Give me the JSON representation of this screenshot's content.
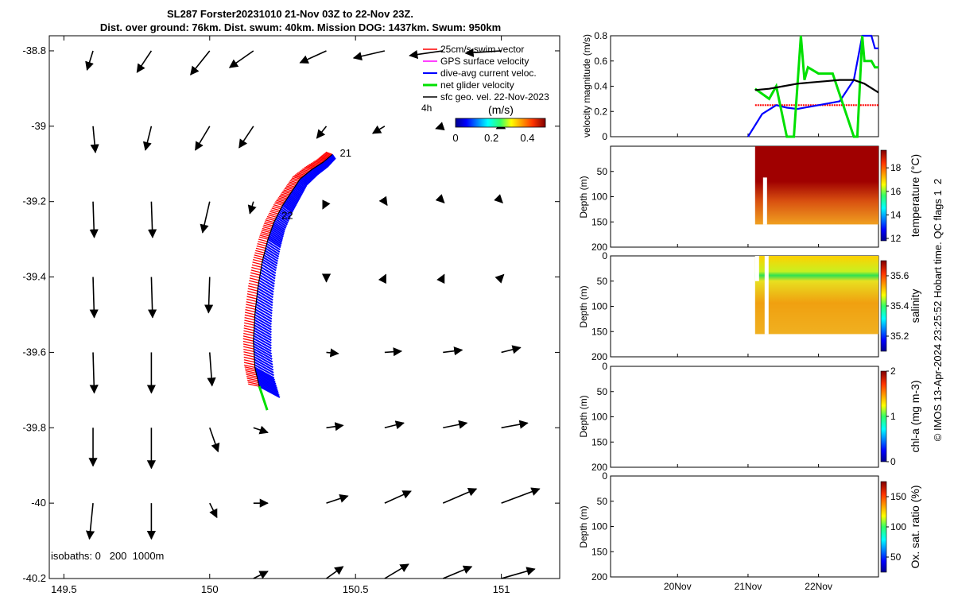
{
  "title": {
    "line1": "SL287 Forster20231010 21-Nov 03Z to 22-Nov 23Z.",
    "line2": "Dist. over ground: 76km. Dist. swum: 40km. Mission DOG: 1437km. Swum: 950km"
  },
  "copyright": "© IMOS 13-Apr-2024 23:25:52 Hobart time. QC flags 1  2",
  "colors": {
    "swim_vector": "#ff0000",
    "gps_velocity": "#ff00ff",
    "dive_avg_current": "#0000ff",
    "net_glider": "#00e000",
    "sfc_geo_vel": "#000000"
  },
  "chart_data": [
    {
      "type": "scatter",
      "panel": "map",
      "xticks": [
        "149.5",
        "150",
        "150.5",
        "151"
      ],
      "xtick_values": [
        149.5,
        150,
        150.5,
        151
      ],
      "yticks": [
        "-38.8",
        "-39",
        "-39.2",
        "-39.4",
        "-39.6",
        "-39.8",
        "-40",
        "-40.2"
      ],
      "ytick_values": [
        -38.8,
        -39,
        -39.2,
        -39.4,
        -39.6,
        -39.8,
        -40,
        -40.2
      ],
      "xlim": [
        149.45,
        151.2
      ],
      "ylim": [
        -40.2,
        -38.76
      ],
      "legend": {
        "placement": "top-right",
        "entries": [
          "25cm/s swim vector",
          "GPS surface velocity",
          "dive-avg current veloc.",
          "net glider velocity",
          "sfc geo. vel. 22-Nov-2023"
        ],
        "interval_label": "4h"
      },
      "colorbar": {
        "label": "(m/s)",
        "ticks": [
          "0",
          "0.2",
          "0.4"
        ],
        "tick_values": [
          0,
          0.2,
          0.4
        ],
        "range": [
          0,
          0.5
        ]
      },
      "isobaths_label": "isobaths: 0   200  1000m",
      "annotations": [
        {
          "text": "21",
          "lon": 150.43,
          "lat": -39.07
        },
        {
          "text": "22",
          "lon": 150.23,
          "lat": -39.235
        }
      ],
      "track": [
        [
          150.42,
          -39.075
        ],
        [
          150.39,
          -39.095
        ],
        [
          150.35,
          -39.115
        ],
        [
          150.31,
          -39.14
        ],
        [
          150.28,
          -39.175
        ],
        [
          150.25,
          -39.21
        ],
        [
          150.22,
          -39.255
        ],
        [
          150.2,
          -39.3
        ],
        [
          150.18,
          -39.36
        ],
        [
          150.165,
          -39.43
        ],
        [
          150.155,
          -39.5
        ],
        [
          150.15,
          -39.57
        ],
        [
          150.155,
          -39.64
        ],
        [
          150.17,
          -39.69
        ]
      ],
      "geo_vectors": {
        "columns": [
          149.6,
          149.8,
          150,
          150.15,
          150.4,
          150.6,
          150.8,
          151
        ],
        "rows": [
          -38.8,
          -39,
          -39.2,
          -39.4,
          -39.6,
          -39.8,
          -40,
          -40.2
        ],
        "u_ms": [
          [
            -0.05,
            -0.12,
            -0.16,
            -0.2,
            -0.22,
            -0.26,
            -0.28,
            -0.3
          ],
          [
            0.02,
            -0.05,
            -0.12,
            -0.12,
            -0.08,
            -0.1,
            -0.06,
            -0.04
          ],
          [
            0.01,
            0.01,
            -0.06,
            -0.03,
            -0.03,
            0.02,
            0.01,
            0.01
          ],
          [
            0.01,
            0.01,
            -0.01,
            0.0,
            0.0,
            0.01,
            0.01,
            0.02
          ],
          [
            0.01,
            0.0,
            0.02,
            0.0,
            0.1,
            0.14,
            0.16,
            0.16
          ],
          [
            0.0,
            0.0,
            0.07,
            0.12,
            0.14,
            0.16,
            0.2,
            0.22
          ],
          [
            -0.03,
            0.0,
            0.06,
            0.12,
            0.18,
            0.22,
            0.28,
            0.32
          ],
          [
            0.0,
            0.0,
            0.0,
            0.12,
            0.14,
            0.2,
            0.24,
            0.28
          ]
        ],
        "v_ms": [
          [
            -0.16,
            -0.18,
            -0.2,
            -0.14,
            -0.1,
            -0.06,
            -0.04,
            -0.02
          ],
          [
            -0.22,
            -0.2,
            -0.2,
            -0.18,
            -0.1,
            -0.06,
            -0.02,
            -0.02
          ],
          [
            -0.3,
            -0.3,
            -0.26,
            -0.1,
            -0.06,
            -0.03,
            -0.01,
            -0.01
          ],
          [
            -0.34,
            -0.34,
            -0.3,
            0.0,
            -0.04,
            0.02,
            0.02,
            0.02
          ],
          [
            -0.34,
            -0.34,
            -0.28,
            0.0,
            -0.01,
            0.01,
            0.02,
            0.04
          ],
          [
            -0.32,
            -0.34,
            -0.2,
            -0.04,
            0.02,
            0.04,
            0.04,
            0.04
          ],
          [
            -0.3,
            -0.3,
            -0.12,
            0.0,
            0.06,
            0.1,
            0.12,
            0.12
          ],
          [
            0.0,
            0.0,
            0.0,
            0.06,
            0.1,
            0.12,
            0.1,
            0.08
          ]
        ]
      }
    },
    {
      "type": "line",
      "panel": "velocity",
      "ylabel": "velocity magnitude (m/s)",
      "yticks": [
        "0",
        "0.2",
        "0.4",
        "0.6",
        "0.8"
      ],
      "ylim": [
        0,
        0.8
      ],
      "series": [
        {
          "color": "red",
          "x_day": [
            21.1,
            21.3,
            21.6,
            22.0,
            22.5,
            22.85
          ],
          "values": [
            0.25,
            0.25,
            0.25,
            0.25,
            0.25,
            0.25
          ]
        },
        {
          "color": "blue",
          "x_day": [
            21.0,
            21.2,
            21.4,
            21.55,
            21.7,
            21.9,
            22.3,
            22.5,
            22.62,
            22.75,
            22.8,
            22.85
          ],
          "values": [
            0.0,
            0.18,
            0.25,
            0.23,
            0.22,
            0.24,
            0.28,
            0.45,
            0.8,
            0.8,
            0.7,
            0.7
          ]
        },
        {
          "color": "green",
          "x_day": [
            21.1,
            21.3,
            21.4,
            21.55,
            21.65,
            21.75,
            21.8,
            21.85,
            22.0,
            22.2,
            22.5,
            22.55,
            22.62,
            22.65,
            22.75,
            22.8,
            22.85
          ],
          "values": [
            0.38,
            0.3,
            0.4,
            0.0,
            0.0,
            0.8,
            0.45,
            0.55,
            0.5,
            0.5,
            0.0,
            0.0,
            0.8,
            0.6,
            0.6,
            0.55,
            0.55
          ]
        },
        {
          "color": "black",
          "x_day": [
            21.1,
            21.3,
            21.5,
            21.7,
            21.9,
            22.1,
            22.3,
            22.5,
            22.65,
            22.85
          ],
          "values": [
            0.37,
            0.38,
            0.4,
            0.42,
            0.43,
            0.44,
            0.45,
            0.45,
            0.42,
            0.35
          ]
        }
      ]
    },
    {
      "type": "heatmap",
      "panel": "temperature",
      "ylabel": "Depth (m)",
      "yticks": [
        "50",
        "100",
        "150",
        "200"
      ],
      "ylim": [
        200,
        0
      ],
      "colorbar": {
        "label": "temperature (°C)",
        "ticks": [
          "12",
          "14",
          "16",
          "18"
        ],
        "range": [
          11.8,
          19.5
        ]
      },
      "data_start_day": 21.1,
      "data_end_day": 22.85,
      "max_depth_m": 155
    },
    {
      "type": "heatmap",
      "panel": "salinity",
      "ylabel": "Depth (m)",
      "yticks": [
        "0",
        "50",
        "100",
        "150",
        "200"
      ],
      "ylim": [
        200,
        0
      ],
      "colorbar": {
        "label": "salinity",
        "ticks": [
          "35.2",
          "35.4",
          "35.6"
        ],
        "range": [
          35.1,
          35.7
        ]
      },
      "data_start_day": 21.1,
      "data_end_day": 22.85,
      "max_depth_m": 155
    },
    {
      "type": "heatmap",
      "panel": "chla",
      "ylabel": "Depth (m)",
      "yticks": [
        "0",
        "50",
        "100",
        "150",
        "200"
      ],
      "ylim": [
        200,
        0
      ],
      "colorbar": {
        "label": "chl-a (mg m-3)",
        "ticks": [
          "0",
          "1",
          "2"
        ],
        "range": [
          0,
          2
        ]
      }
    },
    {
      "type": "heatmap",
      "panel": "oxygen",
      "ylabel": "Depth (m)",
      "yticks": [
        "0",
        "50",
        "100",
        "150",
        "200"
      ],
      "ylim": [
        200,
        0
      ],
      "xticks": [
        "20Nov",
        "21Nov",
        "22Nov"
      ],
      "xtick_values": [
        20,
        21,
        22
      ],
      "xlim": [
        19.05,
        22.85
      ],
      "colorbar": {
        "label": "Ox. sat. ratio (%)",
        "ticks": [
          "50",
          "100",
          "150"
        ],
        "range": [
          25,
          175
        ]
      }
    }
  ]
}
